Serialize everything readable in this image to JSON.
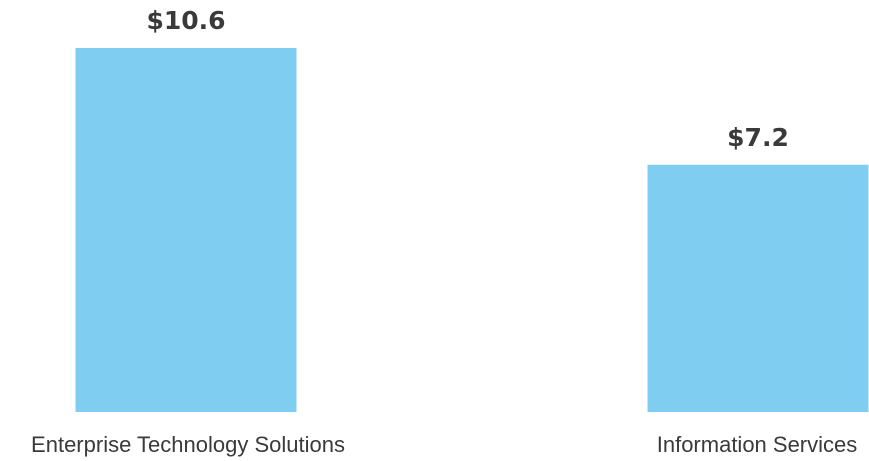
{
  "chart_data": {
    "type": "bar",
    "categories": [
      "Enterprise Technology Solutions",
      "Information Services"
    ],
    "values": [
      10.6,
      7.2
    ],
    "data_labels": [
      "$10.6",
      "$7.2"
    ],
    "title": "",
    "xlabel": "",
    "ylabel": "",
    "ylim": [
      0,
      10.6
    ],
    "grid": false,
    "legend": "none",
    "bar_color": "#80cdf2",
    "label_color": "#3a3a3a"
  }
}
